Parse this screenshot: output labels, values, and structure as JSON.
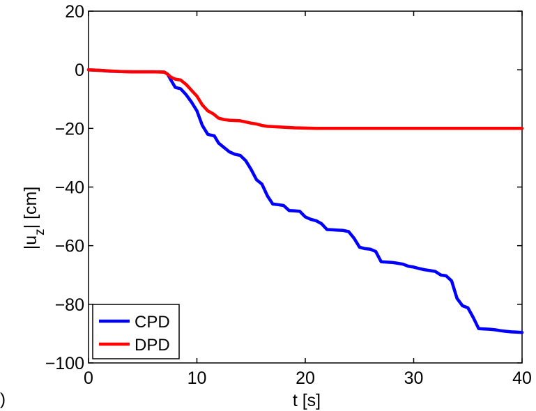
{
  "figure": {
    "corner_mark": ")"
  },
  "chart_data": {
    "type": "line",
    "title": "",
    "xlabel": "t [s]",
    "ylabel": "|u_z| [cm]",
    "xlim": [
      0,
      40
    ],
    "ylim": [
      -100,
      20
    ],
    "xticks": [
      0,
      10,
      20,
      30,
      40
    ],
    "yticks": [
      20,
      0,
      -20,
      -40,
      -60,
      -80,
      -100
    ],
    "xtick_labels": [
      "0",
      "10",
      "20",
      "30",
      "40"
    ],
    "ytick_labels": [
      "20",
      "0",
      "−20",
      "−40",
      "−60",
      "−80",
      "−100"
    ],
    "grid": false,
    "legend_position": "bottom-left",
    "series": [
      {
        "name": "CPD",
        "color": "#0000ff",
        "x": [
          0,
          1,
          2,
          3,
          4,
          5,
          6,
          7,
          7.3,
          7.6,
          8,
          8.5,
          9,
          9.5,
          10,
          10.5,
          11,
          11.3,
          11.6,
          12,
          12.5,
          13,
          13.5,
          14,
          14.5,
          15,
          15.5,
          16,
          16.5,
          17,
          17.5,
          18,
          18.5,
          19,
          19.5,
          20,
          20.5,
          21,
          21.5,
          22,
          22.5,
          23,
          23.5,
          24,
          24.5,
          25,
          25.5,
          26,
          26.5,
          27,
          27.5,
          28,
          28.5,
          29,
          29.5,
          30,
          30.5,
          31,
          31.5,
          32,
          32.5,
          33,
          33.5,
          34,
          34.5,
          35,
          35.5,
          36,
          36.5,
          37,
          37.5,
          38,
          38.5,
          39,
          39.5,
          40
        ],
        "values": [
          0,
          -0.2,
          -0.5,
          -0.6,
          -0.7,
          -0.7,
          -0.7,
          -0.8,
          -1.5,
          -3.5,
          -6,
          -6.5,
          -8.5,
          -11,
          -14,
          -19,
          -22,
          -22.3,
          -22.5,
          -25,
          -26.5,
          -28,
          -28.8,
          -29.2,
          -31,
          -34,
          -37.5,
          -39,
          -43,
          -45.8,
          -46,
          -46.3,
          -48,
          -48.1,
          -48.3,
          -50.2,
          -51,
          -51.5,
          -52.5,
          -54.5,
          -54.6,
          -54.7,
          -54.8,
          -55.2,
          -57.5,
          -60.5,
          -61,
          -61.2,
          -62,
          -65.5,
          -65.6,
          -65.7,
          -66,
          -66.3,
          -67,
          -67.3,
          -67.8,
          -68.2,
          -68.5,
          -68.8,
          -70,
          -70.3,
          -72,
          -78,
          -80.5,
          -81.2,
          -84.5,
          -88.3,
          -88.4,
          -88.5,
          -88.7,
          -89,
          -89.2,
          -89.4,
          -89.5,
          -89.6
        ]
      },
      {
        "name": "DPD",
        "color": "#ff0000",
        "x": [
          0,
          1,
          2,
          3,
          4,
          5,
          6,
          7,
          7.3,
          7.6,
          8,
          8.5,
          9,
          9.5,
          10,
          10.5,
          11,
          11.5,
          12,
          12.5,
          13,
          13.5,
          14,
          14.5,
          15,
          15.5,
          16,
          16.5,
          17,
          18,
          19,
          20,
          21,
          22,
          25,
          30,
          35,
          40
        ],
        "values": [
          0,
          -0.2,
          -0.4,
          -0.6,
          -0.7,
          -0.7,
          -0.7,
          -0.8,
          -1.5,
          -2.5,
          -3.2,
          -3.5,
          -5,
          -7,
          -9,
          -12,
          -14,
          -15,
          -16.5,
          -17,
          -17.2,
          -17.3,
          -17.4,
          -17.8,
          -18.2,
          -18.5,
          -19,
          -19.3,
          -19.4,
          -19.6,
          -19.8,
          -19.9,
          -20,
          -20,
          -20,
          -20,
          -20,
          -20
        ]
      }
    ]
  }
}
